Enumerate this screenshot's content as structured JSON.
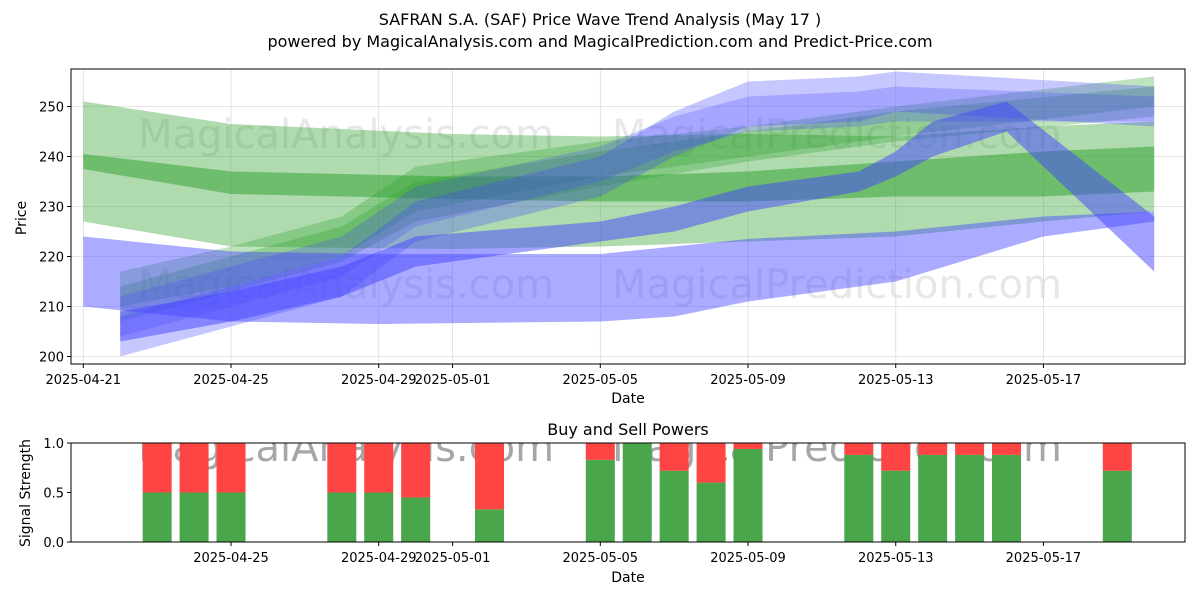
{
  "title_line1": "SAFRAN S.A. (SAF) Price Wave Trend Analysis (May 17 )",
  "title_line2": "powered by MagicalAnalysis.com and MagicalPrediction.com and Predict-Price.com",
  "watermarks": [
    "MagicalAnalysis.com",
    "MagicalPrediction.com"
  ],
  "colors": {
    "green": "#2ca02c",
    "blue": "#4444ff",
    "buy": "#4aa64a",
    "sell": "#ff4444"
  },
  "chart_data": [
    {
      "type": "area",
      "title": "",
      "xlabel": "Date",
      "ylabel": "Price",
      "ylim": [
        198.5,
        257.5
      ],
      "xlim": [
        "2025-04-20T16:00",
        "2025-05-20T20:00"
      ],
      "yticks": [
        200,
        210,
        220,
        230,
        240,
        250
      ],
      "xticks": [
        "2025-04-21",
        "2025-04-25",
        "2025-04-29",
        "2025-05-01",
        "2025-05-05",
        "2025-05-09",
        "2025-05-13",
        "2025-05-17"
      ],
      "grid": true,
      "series": [
        {
          "color": "green",
          "opacity": 0.38,
          "x": [
            "2025-04-21",
            "2025-04-25",
            "2025-05-01",
            "2025-05-05",
            "2025-05-09",
            "2025-05-13",
            "2025-05-17",
            "2025-05-20"
          ],
          "upper": [
            251,
            246.5,
            244.5,
            244,
            244.5,
            244,
            246,
            247
          ],
          "lower": [
            227,
            222,
            221.5,
            222,
            223,
            224,
            227,
            229
          ]
        },
        {
          "color": "green",
          "opacity": 0.5,
          "x": [
            "2025-04-21",
            "2025-04-25",
            "2025-05-01",
            "2025-05-05",
            "2025-05-09",
            "2025-05-13",
            "2025-05-17",
            "2025-05-20"
          ],
          "upper": [
            240.5,
            237,
            236,
            236,
            237,
            239,
            241,
            242
          ],
          "lower": [
            237.5,
            232.5,
            231.5,
            231,
            231,
            232,
            232,
            233
          ]
        },
        {
          "color": "green",
          "opacity": 0.3,
          "x": [
            "2025-04-22",
            "2025-04-25",
            "2025-04-28",
            "2025-04-30",
            "2025-05-05",
            "2025-05-09",
            "2025-05-13",
            "2025-05-20"
          ],
          "upper": [
            217,
            222,
            228,
            238,
            243,
            246,
            250,
            256
          ],
          "lower": [
            210,
            214,
            220,
            229,
            236,
            240,
            244,
            250
          ]
        },
        {
          "color": "green",
          "opacity": 0.3,
          "x": [
            "2025-04-22",
            "2025-04-25",
            "2025-04-28",
            "2025-04-30",
            "2025-05-05",
            "2025-05-09",
            "2025-05-13",
            "2025-05-20"
          ],
          "upper": [
            214,
            220,
            226,
            235,
            241,
            245,
            249,
            254
          ],
          "lower": [
            207,
            213,
            219,
            227,
            234,
            239,
            243,
            248
          ]
        },
        {
          "color": "blue",
          "opacity": 0.45,
          "x": [
            "2025-04-21",
            "2025-04-25",
            "2025-04-29",
            "2025-05-05",
            "2025-05-07",
            "2025-05-09",
            "2025-05-13",
            "2025-05-17",
            "2025-05-20"
          ],
          "upper": [
            224,
            221,
            220.5,
            220.5,
            222,
            223.5,
            225,
            228,
            229
          ],
          "lower": [
            210,
            207,
            206.5,
            207,
            208,
            211,
            215,
            224,
            227
          ]
        },
        {
          "color": "blue",
          "opacity": 0.5,
          "x": [
            "2025-04-22",
            "2025-04-25",
            "2025-04-28",
            "2025-04-30",
            "2025-05-05",
            "2025-05-07",
            "2025-05-09",
            "2025-05-12",
            "2025-05-13",
            "2025-05-14",
            "2025-05-16",
            "2025-05-20"
          ],
          "upper": [
            209,
            213,
            218,
            224,
            227,
            230,
            234,
            237,
            241,
            247,
            251,
            228
          ],
          "lower": [
            203,
            207,
            212,
            218,
            223,
            225,
            229,
            233,
            236,
            240,
            245,
            217
          ]
        },
        {
          "color": "blue",
          "opacity": 0.3,
          "x": [
            "2025-04-22",
            "2025-04-25",
            "2025-04-28",
            "2025-04-30",
            "2025-05-05",
            "2025-05-07",
            "2025-05-09",
            "2025-05-12",
            "2025-05-13",
            "2025-05-20"
          ],
          "upper": [
            208,
            214,
            220,
            231,
            240,
            249,
            255,
            256,
            257,
            254
          ],
          "lower": [
            200,
            206,
            212,
            223,
            232,
            240,
            246,
            247,
            249,
            246
          ]
        },
        {
          "color": "blue",
          "opacity": 0.25,
          "x": [
            "2025-04-22",
            "2025-04-25",
            "2025-04-28",
            "2025-04-30",
            "2025-05-05",
            "2025-05-07",
            "2025-05-09",
            "2025-05-12",
            "2025-05-13",
            "2025-05-20"
          ],
          "upper": [
            212,
            218,
            224,
            234,
            242,
            248,
            252,
            253,
            254,
            252
          ],
          "lower": [
            204,
            210,
            216,
            226,
            235,
            241,
            245,
            246,
            247,
            247
          ]
        }
      ]
    },
    {
      "type": "bar",
      "title": "Buy and Sell Powers",
      "xlabel": "Date",
      "ylabel": "Signal Strength",
      "ylim": [
        0,
        1
      ],
      "yticks": [
        "0.0",
        "0.5",
        "1.0"
      ],
      "xticks": [
        "2025-04-25",
        "2025-04-29",
        "2025-05-01",
        "2025-05-05",
        "2025-05-09",
        "2025-05-13",
        "2025-05-17"
      ],
      "categories": [
        "2025-04-23",
        "2025-04-24",
        "2025-04-25",
        "2025-04-28",
        "2025-04-29",
        "2025-04-30",
        "2025-05-02",
        "2025-05-05",
        "2025-05-06",
        "2025-05-07",
        "2025-05-08",
        "2025-05-09",
        "2025-05-12",
        "2025-05-13",
        "2025-05-14",
        "2025-05-15",
        "2025-05-16",
        "2025-05-19"
      ],
      "series": [
        {
          "name": "buy",
          "values": [
            0.5,
            0.5,
            0.5,
            0.5,
            0.5,
            0.45,
            0.33,
            0.83,
            1.0,
            0.72,
            0.6,
            0.94,
            0.88,
            0.72,
            0.88,
            0.88,
            0.88,
            0.72
          ]
        },
        {
          "name": "sell",
          "values": [
            0.5,
            0.5,
            0.5,
            0.5,
            0.5,
            0.55,
            0.67,
            0.17,
            0.0,
            0.28,
            0.4,
            0.06,
            0.12,
            0.28,
            0.12,
            0.12,
            0.12,
            0.28
          ]
        }
      ]
    }
  ]
}
